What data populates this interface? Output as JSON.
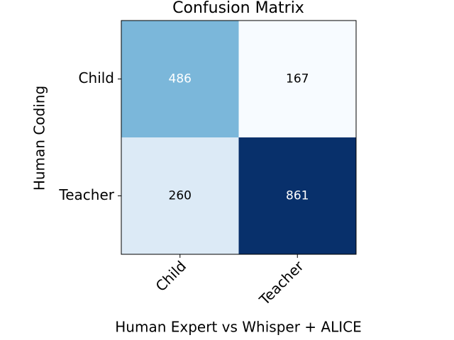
{
  "chart_data": {
    "type": "heatmap",
    "title": "Confusion Matrix",
    "x_label": "Human Expert vs Whisper + ALICE",
    "y_label": "Human Coding",
    "x_categories": [
      "Child",
      "Teacher"
    ],
    "y_categories": [
      "Child",
      "Teacher"
    ],
    "values": [
      [
        486,
        167
      ],
      [
        260,
        861
      ]
    ],
    "colormap": [
      "#f7fbff",
      "#deebf7",
      "#c6dbef",
      "#9ecae1",
      "#6baed6",
      "#4292c6",
      "#2171b5",
      "#08519c",
      "#08306b"
    ]
  }
}
